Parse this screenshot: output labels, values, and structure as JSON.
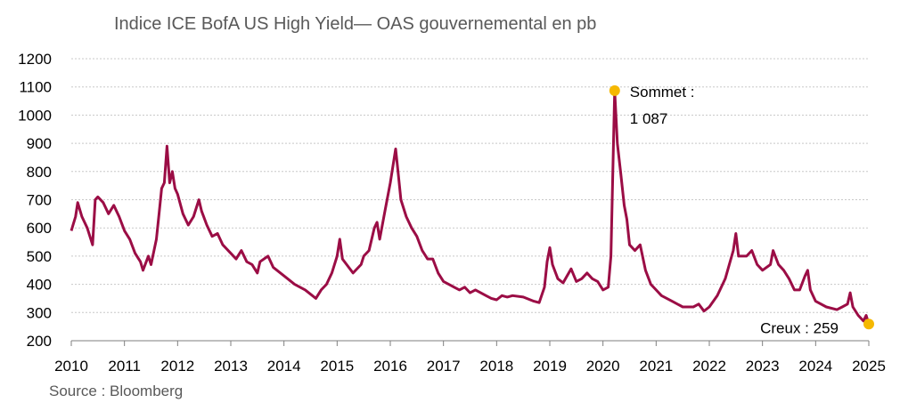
{
  "chart_data": {
    "type": "line",
    "title": "Indice ICE BofA US High Yield— OAS gouvernemental en pb",
    "source": "Source : Bloomberg",
    "color": "#9b0d45",
    "x": [
      2010.0,
      2010.08,
      2010.12,
      2010.2,
      2010.3,
      2010.4,
      2010.45,
      2010.5,
      2010.6,
      2010.7,
      2010.8,
      2010.9,
      2011.0,
      2011.1,
      2011.2,
      2011.3,
      2011.35,
      2011.45,
      2011.5,
      2011.6,
      2011.65,
      2011.7,
      2011.75,
      2011.8,
      2011.85,
      2011.9,
      2011.95,
      2012.0,
      2012.1,
      2012.2,
      2012.3,
      2012.4,
      2012.45,
      2012.55,
      2012.65,
      2012.75,
      2012.85,
      2013.0,
      2013.1,
      2013.2,
      2013.3,
      2013.4,
      2013.5,
      2013.55,
      2013.7,
      2013.8,
      2014.0,
      2014.2,
      2014.4,
      2014.5,
      2014.6,
      2014.7,
      2014.8,
      2014.9,
      2015.0,
      2015.05,
      2015.1,
      2015.3,
      2015.45,
      2015.5,
      2015.6,
      2015.7,
      2015.75,
      2015.8,
      2015.9,
      2016.0,
      2016.1,
      2016.15,
      2016.2,
      2016.3,
      2016.4,
      2016.5,
      2016.6,
      2016.7,
      2016.8,
      2016.9,
      2017.0,
      2017.1,
      2017.2,
      2017.3,
      2017.4,
      2017.5,
      2017.6,
      2017.7,
      2017.8,
      2017.9,
      2018.0,
      2018.1,
      2018.2,
      2018.3,
      2018.5,
      2018.7,
      2018.8,
      2018.9,
      2018.95,
      2019.0,
      2019.05,
      2019.15,
      2019.25,
      2019.4,
      2019.5,
      2019.6,
      2019.7,
      2019.8,
      2019.9,
      2020.0,
      2020.1,
      2020.15,
      2020.22,
      2020.27,
      2020.33,
      2020.4,
      2020.45,
      2020.5,
      2020.6,
      2020.7,
      2020.8,
      2020.9,
      2021.0,
      2021.1,
      2021.3,
      2021.5,
      2021.7,
      2021.8,
      2021.9,
      2022.0,
      2022.15,
      2022.3,
      2022.45,
      2022.5,
      2022.55,
      2022.7,
      2022.8,
      2022.9,
      2023.0,
      2023.15,
      2023.2,
      2023.3,
      2023.4,
      2023.5,
      2023.6,
      2023.7,
      2023.8,
      2023.85,
      2023.9,
      2024.0,
      2024.2,
      2024.4,
      2024.5,
      2024.6,
      2024.65,
      2024.7,
      2024.8,
      2024.9,
      2024.95,
      2025.0
    ],
    "values": [
      590,
      640,
      690,
      640,
      600,
      540,
      700,
      710,
      690,
      650,
      680,
      640,
      590,
      560,
      510,
      480,
      450,
      500,
      470,
      560,
      650,
      740,
      760,
      890,
      760,
      800,
      740,
      720,
      650,
      610,
      640,
      700,
      660,
      610,
      570,
      580,
      540,
      510,
      490,
      520,
      480,
      470,
      440,
      480,
      500,
      460,
      430,
      400,
      380,
      365,
      350,
      380,
      400,
      440,
      500,
      560,
      490,
      440,
      470,
      500,
      520,
      600,
      620,
      560,
      660,
      760,
      880,
      790,
      700,
      640,
      600,
      570,
      520,
      490,
      490,
      440,
      410,
      400,
      390,
      380,
      390,
      370,
      380,
      370,
      360,
      350,
      345,
      360,
      355,
      360,
      355,
      340,
      335,
      390,
      480,
      530,
      470,
      420,
      405,
      455,
      410,
      420,
      440,
      420,
      410,
      380,
      390,
      500,
      1087,
      900,
      800,
      680,
      630,
      540,
      520,
      540,
      450,
      400,
      380,
      360,
      340,
      320,
      320,
      330,
      305,
      320,
      360,
      420,
      520,
      580,
      500,
      500,
      520,
      470,
      450,
      470,
      520,
      470,
      450,
      420,
      380,
      380,
      430,
      450,
      380,
      340,
      320,
      310,
      320,
      330,
      370,
      320,
      290,
      270,
      290,
      259
    ],
    "xlim": [
      2010,
      2025
    ],
    "xticks": [
      2010,
      2011,
      2012,
      2013,
      2014,
      2015,
      2016,
      2017,
      2018,
      2019,
      2020,
      2021,
      2022,
      2023,
      2024,
      2025
    ],
    "ylim": [
      200,
      1200
    ],
    "yticks": [
      200,
      300,
      400,
      500,
      600,
      700,
      800,
      900,
      1000,
      1100,
      1200
    ],
    "grid": true,
    "annotations": [
      {
        "text": "Sommet :",
        "value_label": "1 087",
        "x": 2020.22,
        "y": 1087,
        "color": "#f5b800"
      },
      {
        "text": "Creux : 259",
        "x": 2025.0,
        "y": 259,
        "color": "#f5b800"
      }
    ]
  }
}
